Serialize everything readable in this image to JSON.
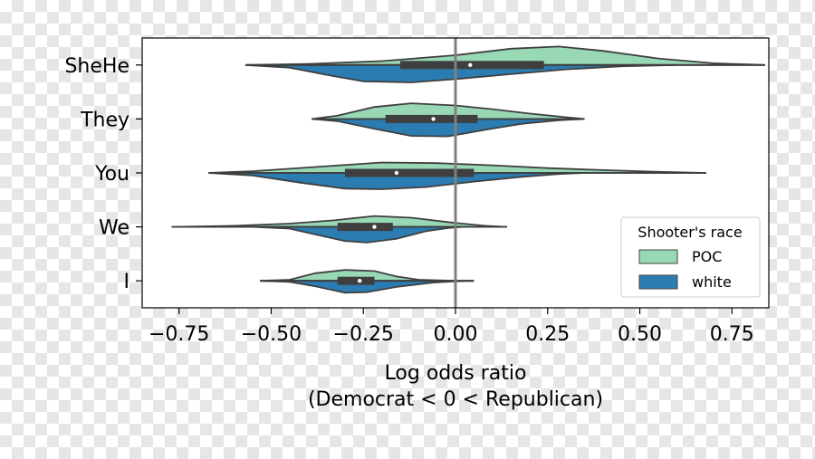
{
  "chart_data": {
    "type": "violin",
    "orientation": "horizontal",
    "split": true,
    "categories": [
      "SheHe",
      "They",
      "You",
      "We",
      "I"
    ],
    "xlabel_line1": "Log odds ratio",
    "xlabel_line2": "(Democrat < 0 < Republican)",
    "xlim": [
      -0.85,
      0.85
    ],
    "xticks": [
      -0.75,
      -0.5,
      -0.25,
      0.0,
      0.25,
      0.5,
      0.75
    ],
    "xtick_labels": [
      "−0.75",
      "−0.50",
      "−0.25",
      "0.00",
      "0.25",
      "0.50",
      "0.75"
    ],
    "reference_line_x": 0.0,
    "legend": {
      "title": "Shooter's race",
      "placement": "lower-right",
      "entries": [
        {
          "label": "POC",
          "color": "#99d8b5"
        },
        {
          "label": "white",
          "color": "#2b7cb1"
        }
      ]
    },
    "series": [
      {
        "category": "SheHe",
        "box": {
          "q1": -0.15,
          "median": 0.04,
          "q3": 0.24
        },
        "whiskers": [
          -0.57,
          0.84
        ],
        "poc_density": [
          [
            -0.57,
            0.0
          ],
          [
            -0.4,
            0.05
          ],
          [
            -0.2,
            0.18
          ],
          [
            0.0,
            0.45
          ],
          [
            0.15,
            0.75
          ],
          [
            0.28,
            0.85
          ],
          [
            0.4,
            0.65
          ],
          [
            0.55,
            0.3
          ],
          [
            0.7,
            0.08
          ],
          [
            0.84,
            0.0
          ]
        ],
        "white_density": [
          [
            -0.57,
            0.0
          ],
          [
            -0.45,
            0.12
          ],
          [
            -0.35,
            0.45
          ],
          [
            -0.25,
            0.75
          ],
          [
            -0.12,
            0.8
          ],
          [
            0.0,
            0.65
          ],
          [
            0.15,
            0.42
          ],
          [
            0.3,
            0.2
          ],
          [
            0.45,
            0.06
          ],
          [
            0.6,
            0.0
          ]
        ]
      },
      {
        "category": "They",
        "box": {
          "q1": -0.19,
          "median": -0.06,
          "q3": 0.06
        },
        "whiskers": [
          -0.39,
          0.35
        ],
        "poc_density": [
          [
            -0.39,
            0.0
          ],
          [
            -0.32,
            0.15
          ],
          [
            -0.22,
            0.55
          ],
          [
            -0.12,
            0.72
          ],
          [
            0.0,
            0.62
          ],
          [
            0.1,
            0.45
          ],
          [
            0.2,
            0.25
          ],
          [
            0.3,
            0.08
          ],
          [
            0.35,
            0.0
          ]
        ],
        "white_density": [
          [
            -0.39,
            0.0
          ],
          [
            -0.32,
            0.1
          ],
          [
            -0.22,
            0.45
          ],
          [
            -0.12,
            0.78
          ],
          [
            -0.02,
            0.8
          ],
          [
            0.08,
            0.5
          ],
          [
            0.18,
            0.22
          ],
          [
            0.28,
            0.06
          ],
          [
            0.35,
            0.0
          ]
        ]
      },
      {
        "category": "You",
        "box": {
          "q1": -0.3,
          "median": -0.16,
          "q3": 0.05
        },
        "whiskers": [
          -0.67,
          0.68
        ],
        "poc_density": [
          [
            -0.67,
            0.0
          ],
          [
            -0.55,
            0.08
          ],
          [
            -0.4,
            0.25
          ],
          [
            -0.2,
            0.48
          ],
          [
            -0.05,
            0.45
          ],
          [
            0.1,
            0.35
          ],
          [
            0.25,
            0.22
          ],
          [
            0.4,
            0.13
          ],
          [
            0.55,
            0.05
          ],
          [
            0.68,
            0.0
          ]
        ],
        "white_density": [
          [
            -0.67,
            0.0
          ],
          [
            -0.55,
            0.12
          ],
          [
            -0.42,
            0.45
          ],
          [
            -0.3,
            0.72
          ],
          [
            -0.2,
            0.75
          ],
          [
            -0.08,
            0.65
          ],
          [
            0.05,
            0.4
          ],
          [
            0.18,
            0.18
          ],
          [
            0.28,
            0.05
          ],
          [
            0.35,
            0.0
          ]
        ]
      },
      {
        "category": "We",
        "box": {
          "q1": -0.32,
          "median": -0.22,
          "q3": -0.17
        },
        "whiskers": [
          -0.77,
          0.14
        ],
        "poc_density": [
          [
            -0.77,
            0.0
          ],
          [
            -0.6,
            0.05
          ],
          [
            -0.45,
            0.15
          ],
          [
            -0.33,
            0.3
          ],
          [
            -0.22,
            0.5
          ],
          [
            -0.12,
            0.42
          ],
          [
            0.0,
            0.18
          ],
          [
            0.08,
            0.05
          ],
          [
            0.14,
            0.0
          ]
        ],
        "white_density": [
          [
            -0.55,
            0.0
          ],
          [
            -0.45,
            0.08
          ],
          [
            -0.38,
            0.35
          ],
          [
            -0.3,
            0.65
          ],
          [
            -0.24,
            0.72
          ],
          [
            -0.16,
            0.55
          ],
          [
            -0.08,
            0.2
          ],
          [
            -0.02,
            0.05
          ],
          [
            0.02,
            0.0
          ]
        ]
      },
      {
        "category": "I",
        "box": {
          "q1": -0.32,
          "median": -0.26,
          "q3": -0.22
        },
        "whiskers": [
          -0.53,
          0.05
        ],
        "poc_density": [
          [
            -0.53,
            0.0
          ],
          [
            -0.45,
            0.05
          ],
          [
            -0.38,
            0.35
          ],
          [
            -0.3,
            0.5
          ],
          [
            -0.22,
            0.45
          ],
          [
            -0.16,
            0.2
          ],
          [
            -0.1,
            0.05
          ],
          [
            0.0,
            0.0
          ],
          [
            0.05,
            0.0
          ]
        ],
        "white_density": [
          [
            -0.53,
            0.0
          ],
          [
            -0.45,
            0.05
          ],
          [
            -0.38,
            0.25
          ],
          [
            -0.3,
            0.55
          ],
          [
            -0.24,
            0.52
          ],
          [
            -0.16,
            0.28
          ],
          [
            -0.06,
            0.08
          ],
          [
            0.0,
            0.02
          ],
          [
            0.05,
            0.0
          ]
        ]
      }
    ]
  }
}
